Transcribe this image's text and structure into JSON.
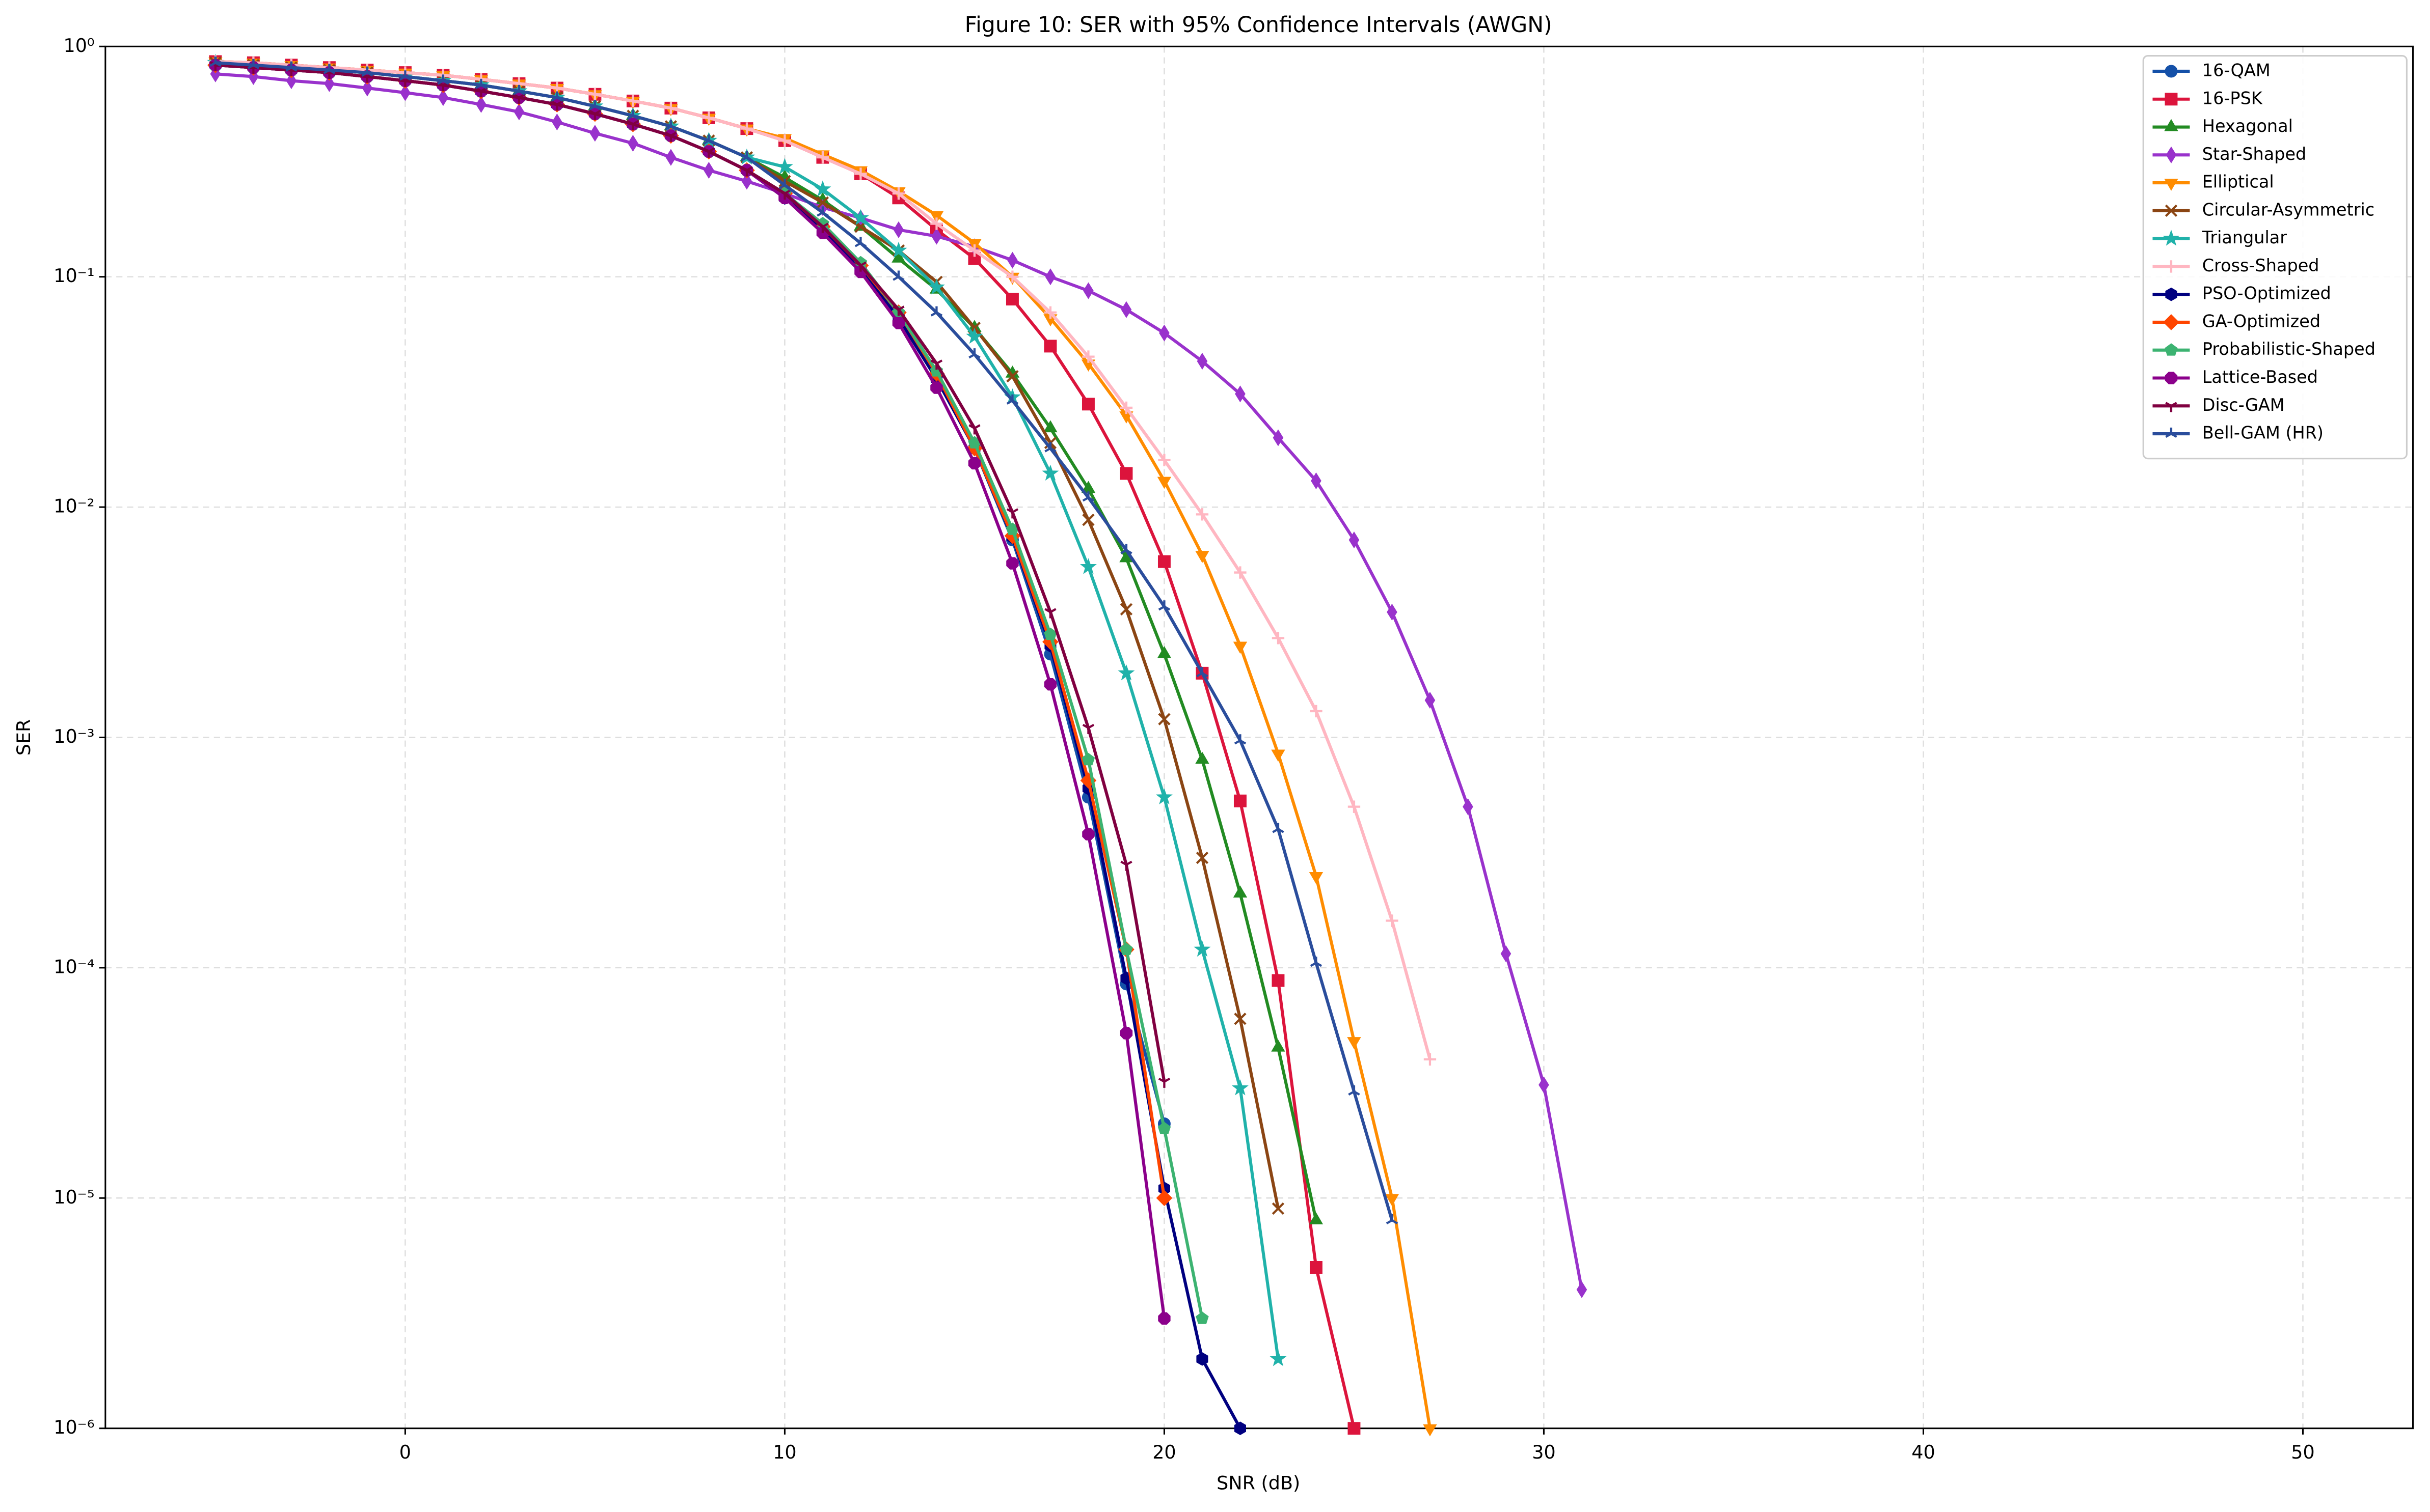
{
  "chart_data": {
    "type": "line",
    "title": "Figure 10: SER with 95% Confidence Intervals (AWGN)",
    "x_label": "SNR (dB)",
    "y_label": "SER",
    "log_y": true,
    "grid": true,
    "legend": "upper right",
    "xlim": [
      -7.9,
      52.9
    ],
    "xticks": [
      0,
      10,
      20,
      30,
      40,
      50
    ],
    "ylim": [
      1e-06,
      1
    ],
    "yticks": [
      {
        "value": 1e-06,
        "label": "10⁻⁶"
      },
      {
        "value": 1e-05,
        "label": "10⁻⁵"
      },
      {
        "value": 0.0001,
        "label": "10⁻⁴"
      },
      {
        "value": 0.001,
        "label": "10⁻³"
      },
      {
        "value": 0.01,
        "label": "10⁻²"
      },
      {
        "value": 0.1,
        "label": "10⁻¹"
      },
      {
        "value": 1,
        "label": "10⁰"
      }
    ],
    "x": [
      -5,
      -4,
      -3,
      -2,
      -1,
      0,
      1,
      2,
      3,
      4,
      5,
      6,
      7,
      8,
      9,
      10,
      11,
      12,
      13,
      14,
      15,
      16,
      17,
      18,
      19,
      20,
      21,
      22,
      23,
      24,
      25,
      26,
      27,
      28,
      29,
      30,
      31
    ],
    "series": [
      {
        "name": "16-QAM",
        "color": "#1450a8",
        "marker": "circle",
        "values": [
          0.83,
          0.81,
          0.79,
          0.77,
          0.74,
          0.71,
          0.68,
          0.64,
          0.6,
          0.56,
          0.51,
          0.46,
          0.41,
          0.35,
          0.29,
          0.23,
          0.165,
          0.11,
          0.068,
          0.037,
          0.018,
          0.0072,
          0.0023,
          0.00055,
          8.5e-05,
          2.1e-05,
          null,
          null,
          null,
          null,
          null,
          null,
          null,
          null,
          null,
          null,
          null
        ]
      },
      {
        "name": "16-PSK",
        "color": "#dc143c",
        "marker": "square",
        "values": [
          0.86,
          0.85,
          0.83,
          0.81,
          0.79,
          0.77,
          0.75,
          0.72,
          0.69,
          0.66,
          0.62,
          0.58,
          0.54,
          0.49,
          0.44,
          0.39,
          0.33,
          0.28,
          0.22,
          0.16,
          0.12,
          0.08,
          0.05,
          0.028,
          0.014,
          0.0058,
          0.0019,
          0.00053,
          8.8e-05,
          5e-06,
          1e-06,
          null,
          null,
          null,
          null,
          null,
          null
        ]
      },
      {
        "name": "Hexagonal",
        "color": "#228b22",
        "marker": "triangle-up",
        "values": [
          0.85,
          0.83,
          0.81,
          0.79,
          0.77,
          0.74,
          0.71,
          0.68,
          0.64,
          0.6,
          0.55,
          0.5,
          0.45,
          0.39,
          0.33,
          0.27,
          0.215,
          0.165,
          0.12,
          0.088,
          0.06,
          0.038,
          0.022,
          0.012,
          0.006,
          0.0023,
          0.0008,
          0.00021,
          4.5e-05,
          8e-06,
          null,
          null,
          null,
          null,
          null,
          null,
          null
        ]
      },
      {
        "name": "Star-Shaped",
        "color": "#9932cc",
        "marker": "thin-diamond",
        "values": [
          0.76,
          0.74,
          0.71,
          0.69,
          0.66,
          0.63,
          0.6,
          0.56,
          0.52,
          0.47,
          0.42,
          0.38,
          0.33,
          0.29,
          0.26,
          0.23,
          0.2,
          0.18,
          0.16,
          0.15,
          0.135,
          0.118,
          0.1,
          0.087,
          0.072,
          0.057,
          0.043,
          0.031,
          0.02,
          0.013,
          0.0072,
          0.0035,
          0.00145,
          0.0005,
          0.000115,
          3.1e-05,
          4e-06
        ]
      },
      {
        "name": "Elliptical",
        "color": "#ff8c00",
        "marker": "triangle-down",
        "values": [
          0.86,
          0.85,
          0.83,
          0.81,
          0.79,
          0.77,
          0.75,
          0.72,
          0.69,
          0.66,
          0.62,
          0.58,
          0.54,
          0.49,
          0.44,
          0.4,
          0.34,
          0.29,
          0.235,
          0.185,
          0.14,
          0.1,
          0.066,
          0.042,
          0.025,
          0.013,
          0.0062,
          0.0025,
          0.00085,
          0.00025,
          4.8e-05,
          1e-05,
          1e-06,
          null,
          null,
          null,
          null
        ]
      },
      {
        "name": "Circular-Asymmetric",
        "color": "#8b4513",
        "marker": "x",
        "values": [
          0.85,
          0.83,
          0.81,
          0.79,
          0.77,
          0.74,
          0.71,
          0.68,
          0.64,
          0.6,
          0.55,
          0.5,
          0.45,
          0.39,
          0.33,
          0.26,
          0.21,
          0.165,
          0.13,
          0.095,
          0.06,
          0.037,
          0.019,
          0.0088,
          0.0036,
          0.0012,
          0.0003,
          6e-05,
          9e-06,
          null,
          null,
          null,
          null,
          null,
          null,
          null,
          null
        ]
      },
      {
        "name": "Triangular",
        "color": "#20b2aa",
        "marker": "star",
        "values": [
          0.85,
          0.83,
          0.81,
          0.79,
          0.77,
          0.74,
          0.71,
          0.68,
          0.64,
          0.6,
          0.55,
          0.5,
          0.45,
          0.39,
          0.33,
          0.3,
          0.24,
          0.18,
          0.13,
          0.09,
          0.055,
          0.03,
          0.014,
          0.0055,
          0.0019,
          0.00055,
          0.00012,
          3e-05,
          2e-06,
          null,
          null,
          null,
          null,
          null,
          null,
          null,
          null
        ]
      },
      {
        "name": "Cross-Shaped",
        "color": "#ffb6c1",
        "marker": "plus",
        "values": [
          0.86,
          0.85,
          0.83,
          0.81,
          0.79,
          0.77,
          0.75,
          0.72,
          0.69,
          0.66,
          0.62,
          0.58,
          0.54,
          0.49,
          0.44,
          0.39,
          0.33,
          0.28,
          0.23,
          0.17,
          0.13,
          0.1,
          0.07,
          0.045,
          0.027,
          0.016,
          0.0093,
          0.0052,
          0.0027,
          0.0013,
          0.0005,
          0.00016,
          4e-05,
          null,
          null,
          null,
          null
        ]
      },
      {
        "name": "PSO-Optimized",
        "color": "#000080",
        "marker": "hexagon",
        "values": [
          0.83,
          0.81,
          0.79,
          0.77,
          0.74,
          0.71,
          0.68,
          0.64,
          0.6,
          0.56,
          0.51,
          0.46,
          0.41,
          0.35,
          0.29,
          0.22,
          0.16,
          0.108,
          0.066,
          0.036,
          0.018,
          0.0074,
          0.0025,
          0.0006,
          9e-05,
          1.1e-05,
          2e-06,
          1e-06,
          null,
          null,
          null,
          null,
          null,
          null,
          null,
          null,
          null
        ]
      },
      {
        "name": "GA-Optimized",
        "color": "#ff4500",
        "marker": "diamond",
        "values": [
          0.83,
          0.81,
          0.79,
          0.77,
          0.74,
          0.71,
          0.68,
          0.64,
          0.6,
          0.56,
          0.51,
          0.46,
          0.41,
          0.35,
          0.29,
          0.23,
          0.165,
          0.112,
          0.07,
          0.038,
          0.018,
          0.0075,
          0.0026,
          0.00065,
          0.00012,
          1e-05,
          null,
          null,
          null,
          null,
          null,
          null,
          null,
          null,
          null,
          null,
          null
        ]
      },
      {
        "name": "Probabilistic-Shaped",
        "color": "#3cb371",
        "marker": "pentagon",
        "values": [
          0.83,
          0.81,
          0.79,
          0.77,
          0.74,
          0.71,
          0.68,
          0.64,
          0.6,
          0.56,
          0.51,
          0.46,
          0.41,
          0.35,
          0.29,
          0.23,
          0.17,
          0.115,
          0.07,
          0.039,
          0.019,
          0.008,
          0.0028,
          0.0008,
          0.00012,
          2e-05,
          3e-06,
          null,
          null,
          null,
          null,
          null,
          null,
          null,
          null,
          null,
          null
        ]
      },
      {
        "name": "Lattice-Based",
        "color": "#8b008b",
        "marker": "octagon",
        "values": [
          0.83,
          0.81,
          0.79,
          0.77,
          0.74,
          0.71,
          0.68,
          0.64,
          0.6,
          0.56,
          0.51,
          0.46,
          0.41,
          0.35,
          0.29,
          0.22,
          0.155,
          0.105,
          0.063,
          0.033,
          0.0155,
          0.0057,
          0.0017,
          0.00038,
          5.2e-05,
          3e-06,
          null,
          null,
          null,
          null,
          null,
          null,
          null,
          null,
          null,
          null,
          null
        ]
      },
      {
        "name": "Disc-GAM",
        "color": "#800040",
        "marker": "tri-down",
        "values": [
          0.83,
          0.81,
          0.79,
          0.77,
          0.74,
          0.71,
          0.68,
          0.64,
          0.6,
          0.56,
          0.51,
          0.46,
          0.41,
          0.35,
          0.29,
          0.23,
          0.165,
          0.112,
          0.072,
          0.042,
          0.022,
          0.0095,
          0.0035,
          0.0011,
          0.00028,
          3.2e-05,
          null,
          null,
          null,
          null,
          null,
          null,
          null,
          null,
          null,
          null,
          null
        ]
      },
      {
        "name": "Bell-GAM (HR)",
        "color": "#2a4d9c",
        "marker": "tri-up",
        "values": [
          0.85,
          0.83,
          0.81,
          0.79,
          0.77,
          0.74,
          0.71,
          0.68,
          0.64,
          0.6,
          0.55,
          0.5,
          0.45,
          0.39,
          0.33,
          0.25,
          0.19,
          0.14,
          0.1,
          0.07,
          0.046,
          0.029,
          0.018,
          0.011,
          0.0065,
          0.0037,
          0.0019,
          0.00097,
          0.0004,
          0.000105,
          2.9e-05,
          8e-06,
          null,
          null,
          null,
          null,
          null
        ]
      }
    ]
  }
}
